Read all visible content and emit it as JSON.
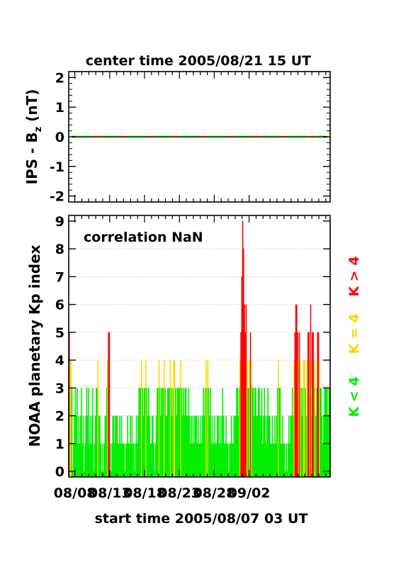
{
  "chart_data": [
    {
      "type": "line",
      "title": "center time 2005/08/21 15 UT",
      "ylabel_main": "IPS - B",
      "ylabel_sub": "z",
      "ylabel_unit": " (nT)",
      "ylim": [
        -2.2,
        2.2
      ],
      "yticks": [
        "2",
        "1",
        "0",
        "-1",
        "-2"
      ],
      "yvalues": [
        2,
        1,
        0,
        -1,
        -2
      ],
      "series": [
        {
          "values": [
            0,
            0
          ],
          "color": "#cc0000"
        },
        {
          "values": [
            0,
            0
          ],
          "color": "#007700"
        }
      ]
    },
    {
      "type": "bar",
      "annotation": "correlation NaN",
      "ylabel": "NOAA planetary Kp index",
      "xlabel": "start time 2005/08/07 03 UT",
      "ylim": [
        -0.2,
        9.2
      ],
      "yticks": [
        "0",
        "1",
        "2",
        "3",
        "4",
        "5",
        "6",
        "7",
        "8",
        "9"
      ],
      "xticks": [
        "08/08",
        "08/13",
        "08/18",
        "08/23",
        "08/28",
        "09/02"
      ],
      "xtick_days": [
        0.875,
        5.875,
        10.875,
        15.875,
        20.875,
        25.875
      ],
      "x_start_date": "2005-08-07T03:00",
      "interval_hours": 3,
      "legend": [
        {
          "label": "K > 4",
          "color": "#ff0000"
        },
        {
          "label": "K = 4",
          "color": "#ffd700"
        },
        {
          "label": "K < 4",
          "color": "#00ee00"
        }
      ],
      "colors": {
        "low": "#00ee00",
        "mid": "#ffd700",
        "high": "#ff0000"
      },
      "kp": [
        5,
        4,
        4,
        3,
        0,
        1,
        2,
        3,
        2,
        3,
        1,
        2,
        1,
        2,
        3,
        1,
        2,
        0,
        1,
        2,
        3,
        2,
        3,
        1,
        2,
        1,
        2,
        3,
        0,
        1,
        2,
        3,
        3,
        4,
        2,
        2,
        1,
        0,
        1,
        0,
        1,
        2,
        2,
        3,
        4,
        5,
        5,
        1,
        0,
        1,
        2,
        2,
        1,
        2,
        2,
        2,
        1,
        1,
        2,
        1,
        2,
        1,
        1,
        1,
        0,
        1,
        1,
        2,
        1,
        1,
        2,
        1,
        2,
        1,
        1,
        0,
        1,
        2,
        1,
        2,
        3,
        3,
        3,
        4,
        3,
        2,
        3,
        3,
        4,
        3,
        2,
        3,
        2,
        1,
        1,
        2,
        2,
        1,
        0,
        1,
        2,
        3,
        3,
        4,
        3,
        2,
        3,
        3,
        3,
        4,
        3,
        2,
        2,
        3,
        3,
        3,
        4,
        3,
        2,
        3,
        4,
        4,
        3,
        2,
        3,
        3,
        3,
        3,
        4,
        3,
        2,
        3,
        2,
        3,
        3,
        2,
        2,
        3,
        2,
        1,
        2,
        1,
        2,
        1,
        2,
        2,
        2,
        1,
        2,
        1,
        1,
        2,
        1,
        2,
        3,
        2,
        3,
        4,
        3,
        4,
        3,
        2,
        3,
        1,
        2,
        1,
        1,
        2,
        1,
        1,
        2,
        2,
        1,
        2,
        1,
        2,
        3,
        2,
        1,
        1,
        2,
        1,
        1,
        0,
        1,
        1,
        2,
        1,
        1,
        2,
        2,
        2,
        3,
        3,
        2,
        3,
        4,
        5,
        7,
        9,
        8,
        6,
        5,
        6,
        4,
        3,
        3,
        4,
        5,
        4,
        3,
        3,
        2,
        3,
        3,
        2,
        2,
        3,
        3,
        2,
        2,
        3,
        1,
        2,
        3,
        2,
        1,
        2,
        3,
        2,
        2,
        1,
        1,
        2,
        1,
        1,
        2,
        1,
        2,
        3,
        4,
        3,
        3,
        1,
        1,
        2,
        1,
        1,
        0,
        1,
        0,
        1,
        2,
        1,
        2,
        2,
        3,
        2,
        4,
        5,
        6,
        6,
        5,
        4,
        5,
        4,
        3,
        2,
        3,
        4,
        4,
        3,
        2,
        4,
        5,
        5,
        4,
        6,
        4,
        5,
        5,
        3,
        4,
        2,
        3,
        5,
        5,
        4,
        3,
        3,
        2,
        1,
        2,
        3,
        3,
        3,
        3,
        2,
        3,
        3
      ]
    }
  ]
}
